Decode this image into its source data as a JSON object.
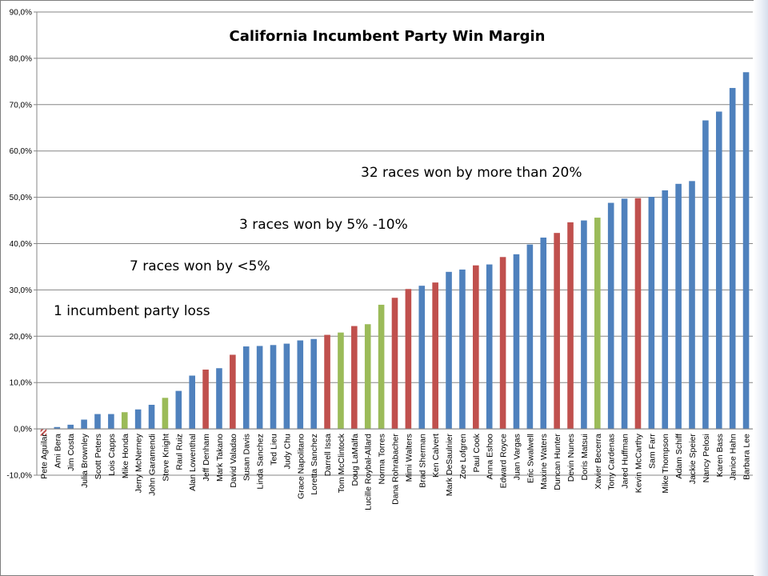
{
  "chart_data": {
    "type": "bar",
    "title": "California Incumbent Party Win Margin",
    "xlabel": "",
    "ylabel": "",
    "ylim": [
      -10,
      90
    ],
    "ytick_labels": [
      "-10,0%",
      "0,0%",
      "10,0%",
      "20,0%",
      "30,0%",
      "40,0%",
      "50,0%",
      "60,0%",
      "70,0%",
      "80,0%",
      "90,0%"
    ],
    "grid": true,
    "legend": "none",
    "colors": {
      "blue": "#4f81bd",
      "red": "#c0504d",
      "green": "#9bbb59"
    },
    "annotations": [
      "32 races won by more than 20%",
      "3 races won by 5% -10%",
      "7 races won by <5%",
      "1 incumbent party loss"
    ],
    "categories": [
      "Pete Aguilar",
      "Ami Bera",
      "Jim Costa",
      "Julia Brownley",
      "Scott Peters",
      "Lois Capps",
      "Mike Honda",
      "Jerry McNerney",
      "John Garamendi",
      "Steve Knight",
      "Raul Ruiz",
      "Alan Lowenthal",
      "Jeff Denham",
      "Mark Takano",
      "David Valadao",
      "Susan Davis",
      "Linda Sanchez",
      "Ted Lieu",
      "Judy Chu",
      "Grace Napolitano",
      "Loretta Sanchez",
      "Darrell Issa",
      "Tom McClintock",
      "Doug LaMalfa",
      "Lucille Roybal-Allard",
      "Norma Torres",
      "Dana Rohrabacher",
      "Mimi Walters",
      "Brad Sherman",
      "Ken Calvert",
      "Mark DeSaulnier",
      "Zoe Lofgren",
      "Paul Cook",
      "Anna Eshoo",
      "Edward Royce",
      "Juan Vargas",
      "Eric Swalwell",
      "Maxine Waters",
      "Duncan Hunter",
      "Devin Nunes",
      "Doris Matsui",
      "Xavier Becerra",
      "Tony Cardenas",
      "Jared Huffman",
      "Kevin McCarthy",
      "Sam Farr",
      "Mike Thompson",
      "Adam Schiff",
      "Jackie Speier",
      "Nancy Pelosi",
      "Karen Bass",
      "Janice Hahn",
      "Barbara Lee"
    ],
    "series": [
      {
        "values": [
          -1.5,
          0.4,
          0.9,
          2.0,
          3.2,
          3.2,
          3.6,
          4.2,
          5.2,
          6.7,
          8.2,
          11.5,
          12.8,
          13.1,
          16.0,
          17.8,
          17.9,
          18.1,
          18.4,
          19.1,
          19.4,
          20.3,
          20.8,
          22.2,
          22.6,
          26.8,
          28.3,
          30.2,
          30.9,
          31.6,
          33.9,
          34.4,
          35.3,
          35.5,
          37.1,
          37.7,
          39.8,
          41.3,
          42.3,
          44.6,
          45.0,
          45.6,
          48.8,
          49.7,
          49.8,
          50.1,
          51.5,
          52.9,
          53.5,
          66.6,
          68.5,
          73.6,
          77.0
        ],
        "colors": [
          "hatched-red",
          "blue",
          "blue",
          "blue",
          "blue",
          "blue",
          "green",
          "blue",
          "blue",
          "green",
          "blue",
          "blue",
          "red",
          "blue",
          "red",
          "blue",
          "blue",
          "blue",
          "blue",
          "blue",
          "blue",
          "red",
          "green",
          "red",
          "green",
          "green",
          "red",
          "red",
          "blue",
          "red",
          "blue",
          "blue",
          "red",
          "blue",
          "red",
          "blue",
          "blue",
          "blue",
          "red",
          "red",
          "blue",
          "green",
          "blue",
          "blue",
          "red",
          "blue",
          "blue",
          "blue",
          "blue",
          "blue",
          "blue",
          "blue",
          "blue"
        ]
      }
    ]
  }
}
